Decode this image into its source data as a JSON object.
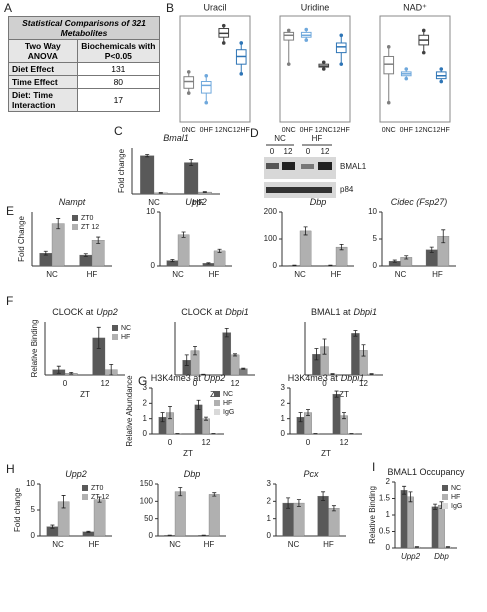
{
  "panel_labels": [
    "A",
    "B",
    "C",
    "D",
    "E",
    "F",
    "G",
    "H",
    "I"
  ],
  "table": {
    "title": "Statistical Comparisons of 321 Metabolites",
    "header": [
      "Two Way ANOVA",
      "Biochemicals with P<0.05"
    ],
    "rows": [
      [
        "Diet Effect",
        "131"
      ],
      [
        "Time Effect",
        "80"
      ],
      [
        "Diet: Time Interaction",
        "17"
      ]
    ]
  },
  "blot": {
    "groups": [
      "NC",
      "HF"
    ],
    "lanes": [
      "0",
      "12",
      "0",
      "12"
    ],
    "bands": [
      "BMAL1",
      "p84"
    ]
  },
  "chart_data": [
    {
      "type": "box",
      "title": "Uracil",
      "categories": [
        "0NC",
        "0HF",
        "12NC",
        "12HF"
      ],
      "colors": [
        "#7f7f7f",
        "#6fa8dc",
        "#404040",
        "#2e75b6"
      ],
      "boxes": [
        [
          0.3,
          0.35,
          0.42,
          0.47,
          0.52
        ],
        [
          0.2,
          0.3,
          0.38,
          0.42,
          0.48
        ],
        [
          0.82,
          0.88,
          0.92,
          0.97,
          1.0
        ],
        [
          0.5,
          0.6,
          0.68,
          0.75,
          0.82
        ]
      ],
      "ylim": [
        0,
        1.1
      ]
    },
    {
      "type": "box",
      "title": "Uridine",
      "categories": [
        "0NC",
        "0HF",
        "12NC",
        "12HF"
      ],
      "colors": [
        "#7f7f7f",
        "#6fa8dc",
        "#404040",
        "#2e75b6"
      ],
      "boxes": [
        [
          0.6,
          0.85,
          0.9,
          0.93,
          0.95
        ],
        [
          0.85,
          0.88,
          0.9,
          0.93,
          0.96
        ],
        [
          0.55,
          0.57,
          0.58,
          0.6,
          0.62
        ],
        [
          0.6,
          0.72,
          0.78,
          0.82,
          0.9
        ]
      ],
      "ylim": [
        0,
        1.1
      ]
    },
    {
      "type": "box",
      "title": "NAD⁺",
      "categories": [
        "0NC",
        "0HF",
        "12NC",
        "12HF"
      ],
      "colors": [
        "#7f7f7f",
        "#6fa8dc",
        "#404040",
        "#2e75b6"
      ],
      "boxes": [
        [
          0.2,
          0.5,
          0.6,
          0.68,
          0.78
        ],
        [
          0.45,
          0.48,
          0.5,
          0.52,
          0.55
        ],
        [
          0.72,
          0.8,
          0.85,
          0.9,
          0.95
        ],
        [
          0.42,
          0.45,
          0.48,
          0.52,
          0.55
        ]
      ],
      "ylim": [
        0,
        1.1
      ]
    },
    {
      "type": "bar",
      "title": "Bmal1",
      "italic_title": true,
      "ylabel": "Fold change",
      "categories": [
        "NC",
        "HF"
      ],
      "series": [
        {
          "color": "#595959",
          "values": [
            1.0,
            0.82
          ],
          "errors": [
            0.03,
            0.08
          ]
        },
        {
          "color": "#b0b0b0",
          "values": [
            0.03,
            0.05
          ],
          "errors": [
            0.01,
            0.01
          ]
        }
      ],
      "ylim": [
        0,
        1.2
      ]
    },
    {
      "type": "bar",
      "title": "Nampt",
      "italic_title": true,
      "ylabel": "Fold Change",
      "categories": [
        "NC",
        "HF"
      ],
      "series": [
        {
          "name": "ZT0",
          "color": "#595959",
          "values": [
            1,
            0.85
          ],
          "errors": [
            0.15,
            0.1
          ]
        },
        {
          "name": "ZT 12",
          "color": "#b0b0b0",
          "values": [
            3.3,
            2.0
          ],
          "errors": [
            0.4,
            0.25
          ]
        }
      ],
      "ylim": [
        0,
        4.2
      ]
    },
    {
      "type": "bar",
      "title": "Upp2",
      "italic_title": true,
      "categories": [
        "NC",
        "HF"
      ],
      "series": [
        {
          "color": "#595959",
          "values": [
            1,
            0.5
          ],
          "errors": [
            0.2,
            0.1
          ]
        },
        {
          "color": "#b0b0b0",
          "values": [
            5.8,
            2.8
          ],
          "errors": [
            0.5,
            0.3
          ]
        }
      ],
      "ylim": [
        0,
        10
      ],
      "yticks": [
        0,
        10
      ]
    },
    {
      "type": "bar",
      "title": "Dbp",
      "italic_title": true,
      "categories": [
        "NC",
        "HF"
      ],
      "series": [
        {
          "color": "#595959",
          "values": [
            2,
            2
          ],
          "errors": [
            1,
            1
          ]
        },
        {
          "color": "#b0b0b0",
          "values": [
            130,
            70
          ],
          "errors": [
            15,
            10
          ]
        }
      ],
      "ylim": [
        0,
        200
      ],
      "yticks": [
        0,
        100,
        200
      ]
    },
    {
      "type": "bar",
      "title": "Cidec (Fsp27)",
      "italic_title": true,
      "categories": [
        "NC",
        "HF"
      ],
      "series": [
        {
          "color": "#595959",
          "values": [
            0.9,
            3
          ],
          "errors": [
            0.2,
            0.5
          ]
        },
        {
          "color": "#b0b0b0",
          "values": [
            1.6,
            5.5
          ],
          "errors": [
            0.3,
            1.2
          ]
        }
      ],
      "ylim": [
        0,
        10
      ],
      "yticks": [
        0,
        5,
        10
      ]
    },
    {
      "type": "bar",
      "title": "CLOCK at",
      "title_gene": "Upp2",
      "ylabel": "Relative  Binding",
      "xlabel": "ZT",
      "categories": [
        "0",
        "12"
      ],
      "series": [
        {
          "name": "NC",
          "color": "#595959",
          "values": [
            0.3,
            2.1
          ],
          "errors": [
            0.2,
            0.6
          ]
        },
        {
          "name": "HF",
          "color": "#b0b0b0",
          "values": [
            0.1,
            0.3
          ],
          "errors": [
            0.05,
            0.3
          ]
        }
      ],
      "ylim": [
        0,
        3
      ]
    },
    {
      "type": "bar",
      "title": "CLOCK at",
      "title_gene": "Dbpi1",
      "xlabel": "ZT",
      "categories": [
        "0",
        "12"
      ],
      "series": [
        {
          "color": "#595959",
          "values": [
            1.4,
            4.0
          ],
          "errors": [
            0.5,
            0.4
          ]
        },
        {
          "color": "#b0b0b0",
          "values": [
            2.3,
            1.9
          ],
          "errors": [
            0.4,
            0.1
          ]
        },
        {
          "color": "#7f7f7f",
          "values": [
            0.05,
            0.6
          ],
          "errors": [
            0.02,
            0.05
          ]
        }
      ],
      "ylim": [
        0,
        5
      ]
    },
    {
      "type": "bar",
      "title": "BMAL1 at",
      "title_gene": "Dbpi1",
      "xlabel": "ZT",
      "categories": [
        "0",
        "12"
      ],
      "series": [
        {
          "color": "#595959",
          "values": [
            1.1,
            2.2
          ],
          "errors": [
            0.3,
            0.15
          ]
        },
        {
          "color": "#b0b0b0",
          "values": [
            1.5,
            1.3
          ],
          "errors": [
            0.4,
            0.3
          ]
        },
        {
          "color": "#d9d9d9",
          "values": [
            0.05,
            0.05
          ],
          "errors": [
            0.02,
            0.02
          ]
        }
      ],
      "ylim": [
        0,
        2.8
      ]
    },
    {
      "type": "bar",
      "title": "H3K4me3 at",
      "title_gene": "Upp2",
      "ylabel": "Relative Abundance",
      "xlabel": "ZT",
      "categories": [
        "0",
        "12"
      ],
      "series": [
        {
          "name": "NC",
          "color": "#595959",
          "values": [
            1.1,
            1.9
          ],
          "errors": [
            0.3,
            0.3
          ]
        },
        {
          "name": "HF",
          "color": "#b0b0b0",
          "values": [
            1.4,
            1.0
          ],
          "errors": [
            0.4,
            0.1
          ]
        },
        {
          "name": "IgG",
          "color": "#d9d9d9",
          "values": [
            0.02,
            0.02
          ],
          "errors": [
            0.01,
            0.01
          ]
        }
      ],
      "ylim": [
        0,
        3
      ],
      "yticks": [
        0,
        1,
        2,
        3
      ]
    },
    {
      "type": "bar",
      "title": "H3K4me3 at",
      "title_gene": "Dbpi1",
      "xlabel": "ZT",
      "categories": [
        "0",
        "12"
      ],
      "series": [
        {
          "color": "#595959",
          "values": [
            1.1,
            2.6
          ],
          "errors": [
            0.3,
            0.2
          ]
        },
        {
          "color": "#b0b0b0",
          "values": [
            1.4,
            1.2
          ],
          "errors": [
            0.2,
            0.2
          ]
        },
        {
          "color": "#d9d9d9",
          "values": [
            0.02,
            0.02
          ],
          "errors": [
            0.01,
            0.01
          ]
        }
      ],
      "ylim": [
        0,
        3
      ],
      "yticks": [
        0,
        1,
        2,
        3
      ]
    },
    {
      "type": "bar",
      "title": "Upp2",
      "italic_title": true,
      "ylabel": "Fold change",
      "categories": [
        "NC",
        "HF"
      ],
      "series": [
        {
          "name": "ZT0",
          "color": "#595959",
          "values": [
            1.8,
            0.8
          ],
          "errors": [
            0.3,
            0.1
          ]
        },
        {
          "name": "ZT 12",
          "color": "#b0b0b0",
          "values": [
            6.6,
            7.0
          ],
          "errors": [
            1.2,
            0.5
          ]
        }
      ],
      "ylim": [
        0,
        10
      ],
      "yticks": [
        0,
        5,
        10
      ]
    },
    {
      "type": "bar",
      "title": "Dbp",
      "italic_title": true,
      "categories": [
        "NC",
        "HF"
      ],
      "series": [
        {
          "color": "#595959",
          "values": [
            2,
            2
          ],
          "errors": [
            0.5,
            0.5
          ]
        },
        {
          "color": "#b0b0b0",
          "values": [
            128,
            120
          ],
          "errors": [
            12,
            5
          ]
        }
      ],
      "ylim": [
        0,
        150
      ],
      "yticks": [
        0,
        50,
        100,
        150
      ]
    },
    {
      "type": "bar",
      "title": "Pcx",
      "italic_title": true,
      "categories": [
        "NC",
        "HF"
      ],
      "series": [
        {
          "color": "#595959",
          "values": [
            1.9,
            2.3
          ],
          "errors": [
            0.3,
            0.25
          ]
        },
        {
          "color": "#b0b0b0",
          "values": [
            1.9,
            1.6
          ],
          "errors": [
            0.2,
            0.15
          ]
        }
      ],
      "ylim": [
        0,
        3
      ],
      "yticks": [
        0,
        1,
        2,
        3
      ]
    },
    {
      "type": "bar",
      "title": "BMAL1 Occupancy",
      "ylabel": "Relative Binding",
      "categories": [
        "Upp2",
        "Dbp"
      ],
      "italic_categories": true,
      "series": [
        {
          "name": "NC",
          "color": "#595959",
          "values": [
            1.75,
            1.25
          ],
          "errors": [
            0.12,
            0.08
          ]
        },
        {
          "name": "HF",
          "color": "#b0b0b0",
          "values": [
            1.55,
            1.3
          ],
          "errors": [
            0.15,
            0.1
          ]
        },
        {
          "name": "IgG",
          "color": "#d9d9d9",
          "values": [
            0.03,
            0.03
          ],
          "errors": [
            0.01,
            0.01
          ]
        }
      ],
      "ylim": [
        0,
        2
      ],
      "yticks": [
        0,
        0.5,
        1,
        1.5,
        2
      ]
    }
  ]
}
